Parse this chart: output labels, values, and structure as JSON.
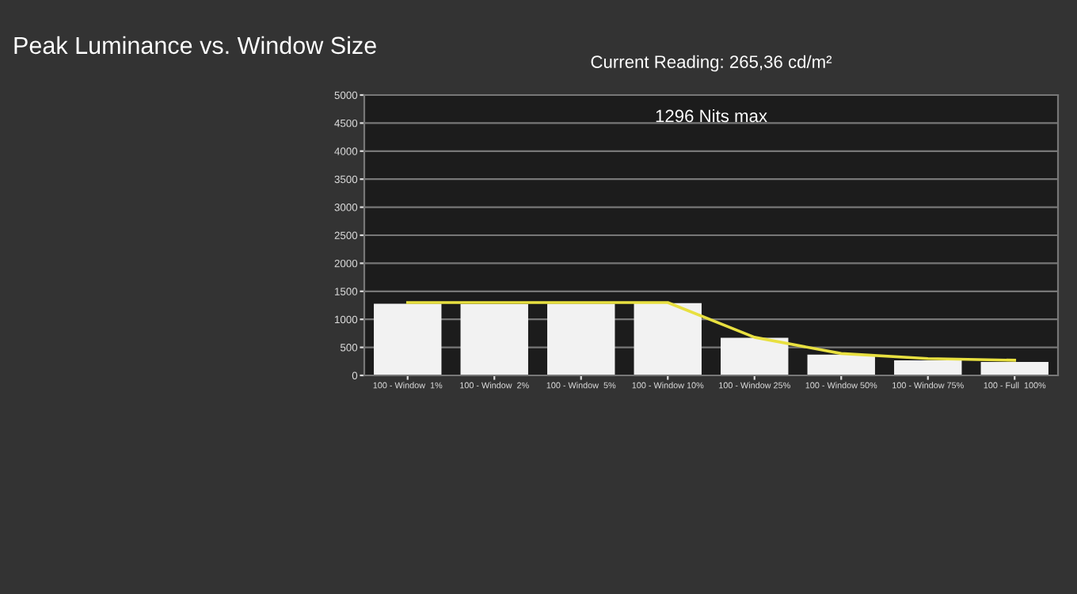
{
  "chart_data": {
    "type": "bar",
    "title": "Peak Luminance vs. Window Size",
    "subtitle": "Current Reading: 265,36 cd/m²",
    "annotations": [
      "1296 Nits max"
    ],
    "categories": [
      "100 - Window  1%",
      "100 - Window  2%",
      "100 - Window  5%",
      "100 - Window 10%",
      "100 - Window 25%",
      "100 - Window 50%",
      "100 - Window 75%",
      "100 - Full  100%"
    ],
    "series": [
      {
        "color": "#f2f2f2",
        "values": [
          1280,
          1270,
          1280,
          1290,
          670,
          370,
          270,
          240
        ]
      },
      {
        "type": "line",
        "color": "#e8e040",
        "values": [
          1300,
          1300,
          1300,
          1300,
          680,
          390,
          300,
          270
        ]
      }
    ],
    "ylim": [
      0,
      5000
    ],
    "yticks": [
      0,
      500,
      1000,
      1500,
      2000,
      2500,
      3000,
      3500,
      4000,
      4500,
      5000
    ],
    "grid": "y",
    "legend": false
  }
}
